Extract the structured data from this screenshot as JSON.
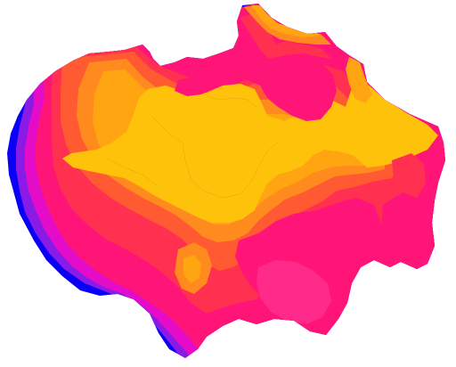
{
  "map": {
    "colors": {
      "band_blue": "#0a00f5",
      "band_violet": "#8a1ae6",
      "band_magenta": "#e40cc8",
      "band_pink": "#ff1478",
      "band_red": "#ff3050",
      "band_orange_red": "#ff5a32",
      "band_orange": "#ff8a1e",
      "band_amber": "#ffa512",
      "band_yellow": "#ffc20a"
    },
    "legend": []
  }
}
